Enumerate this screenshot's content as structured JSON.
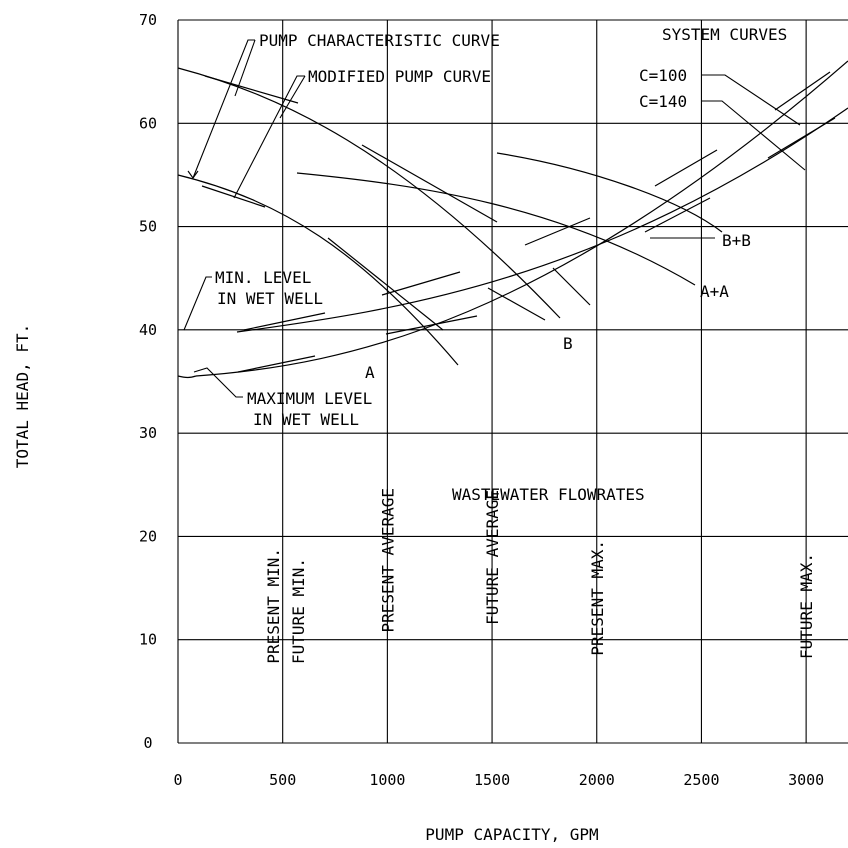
{
  "chart_data": {
    "type": "line",
    "xlabel": "PUMP CAPACITY,  GPM",
    "ylabel": "TOTAL HEAD,  FT.",
    "xlim": [
      0,
      3200
    ],
    "ylim": [
      0,
      70
    ],
    "x_ticks": [
      "0",
      "500",
      "1000",
      "1500",
      "2000",
      "2500",
      "3000"
    ],
    "y_ticks": [
      "0",
      "10",
      "20",
      "30",
      "40",
      "50",
      "60",
      "70"
    ],
    "grid": true,
    "series": [
      {
        "name": "A",
        "x": [
          0,
          500,
          800,
          1000,
          1200,
          1330
        ],
        "y": [
          55.2,
          51,
          46.5,
          42.5,
          37.5,
          32.3
        ]
      },
      {
        "name": "B",
        "x": [
          0,
          500,
          1000,
          1500,
          1800
        ],
        "y": [
          65.5,
          61,
          55,
          46,
          37
        ]
      },
      {
        "name": "A+A",
        "x": [
          580,
          1000,
          1500,
          2000,
          2400,
          2550
        ],
        "y": [
          55.3,
          54.3,
          52,
          48.5,
          45,
          43.5
        ]
      },
      {
        "name": "B+B",
        "x": [
          1000,
          1500,
          2000,
          2400,
          2600
        ],
        "y": [
          58.5,
          57,
          54,
          50.7,
          48.3
        ]
      },
      {
        "name": "C=100",
        "x": [
          170,
          1000,
          1500,
          2000,
          2500,
          3000,
          3200
        ],
        "y": [
          35.8,
          37.8,
          41.5,
          45.5,
          51.5,
          59.5,
          66.5
        ]
      },
      {
        "name": "C=140",
        "x": [
          270,
          1000,
          1500,
          2000,
          2500,
          3000,
          3200
        ],
        "y": [
          40,
          44,
          46.7,
          49.3,
          53.5,
          57.5,
          62
        ]
      }
    ],
    "vertical_markers": [
      {
        "label": "PRESENT MIN.",
        "x": 400
      },
      {
        "label": "FUTURE MIN.",
        "x": 400
      },
      {
        "label": "PRESENT AVERAGE",
        "x": 1000
      },
      {
        "label": "FUTURE AVERAGE",
        "x": 1500
      },
      {
        "label": "PRESENT MAX.",
        "x": 2000
      },
      {
        "label": "FUTURE MAX.",
        "x": 3000
      }
    ],
    "annotations": {
      "pump_characteristic": "PUMP CHARACTERISTIC CURVE",
      "modified_pump": "MODIFIED PUMP CURVE",
      "system_curves": "SYSTEM CURVES",
      "min_level_1": "MIN. LEVEL",
      "min_level_2": "IN WET WELL",
      "max_level_1": "MAXIMUM LEVEL",
      "max_level_2": "IN WET WELL",
      "flowrates_title": "WASTEWATER FLOWRATES",
      "c100": "C=100",
      "c140": "C=140",
      "label_a": "A",
      "label_b": "B",
      "label_aa": "A+A",
      "label_bb": "B+B"
    }
  }
}
